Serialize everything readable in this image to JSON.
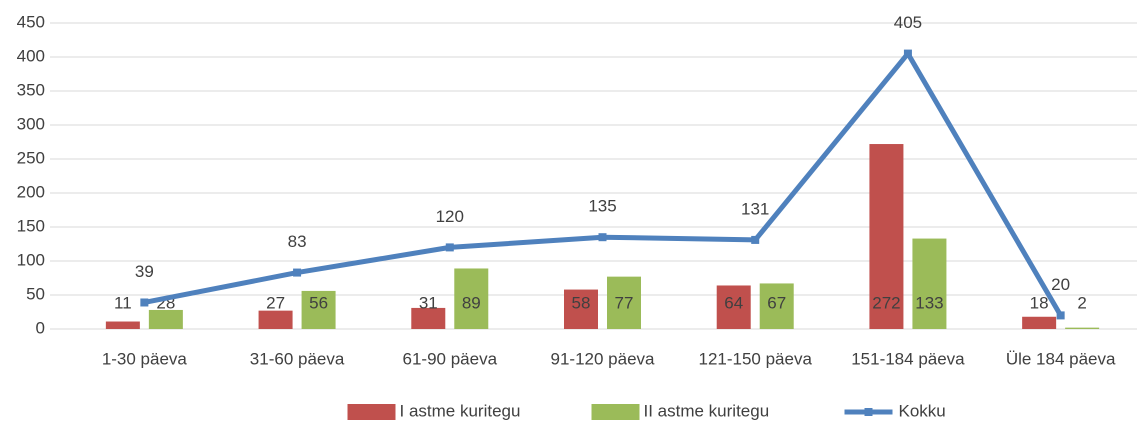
{
  "chart_data": {
    "type": "bar",
    "categories": [
      "1-30 päeva",
      "31-60 päeva",
      "61-90 päeva",
      "91-120 päeva",
      "121-150 päeva",
      "151-184 päeva",
      "Üle 184 päeva"
    ],
    "series": [
      {
        "name": "I astme kuritegu",
        "color": "#c0504d",
        "values": [
          11,
          27,
          31,
          58,
          64,
          272,
          18
        ]
      },
      {
        "name": "II astme kuritegu",
        "color": "#9bbb59",
        "values": [
          28,
          56,
          89,
          77,
          67,
          133,
          2
        ]
      },
      {
        "name": "Kokku",
        "color": "#4f81bd",
        "type": "line",
        "values": [
          39,
          83,
          120,
          135,
          131,
          405,
          20
        ]
      }
    ],
    "ylim": [
      0,
      450
    ],
    "yticks": [
      0,
      50,
      100,
      150,
      200,
      250,
      300,
      350,
      400,
      450
    ],
    "grid": true,
    "legend": "bottom"
  }
}
